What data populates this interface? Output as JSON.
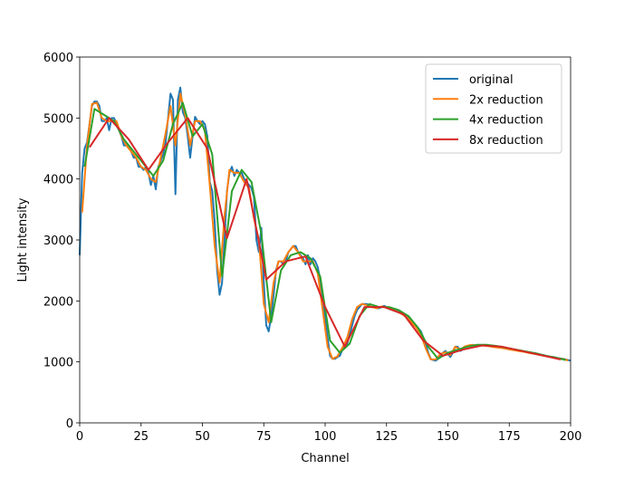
{
  "chart_data": {
    "type": "line",
    "xlabel": "Channel",
    "ylabel": "Light intensity",
    "xlim": [
      0,
      200
    ],
    "ylim": [
      0,
      6000
    ],
    "xticks": [
      0,
      25,
      50,
      75,
      100,
      125,
      150,
      175,
      200
    ],
    "yticks": [
      0,
      1000,
      2000,
      3000,
      4000,
      5000,
      6000
    ],
    "legend": "upper right",
    "grid": false,
    "series": [
      {
        "name": "original",
        "color": "#1f77b4",
        "x": [
          0,
          1,
          2,
          3,
          4,
          5,
          6,
          7,
          8,
          9,
          10,
          11,
          12,
          13,
          14,
          15,
          16,
          17,
          18,
          19,
          20,
          21,
          22,
          23,
          24,
          25,
          26,
          27,
          28,
          29,
          30,
          31,
          32,
          33,
          34,
          35,
          36,
          37,
          38,
          39,
          40,
          41,
          42,
          43,
          44,
          45,
          46,
          47,
          48,
          49,
          50,
          51,
          52,
          53,
          54,
          55,
          56,
          57,
          58,
          59,
          60,
          61,
          62,
          63,
          64,
          65,
          66,
          67,
          68,
          69,
          70,
          71,
          72,
          73,
          74,
          75,
          76,
          77,
          78,
          79,
          80,
          81,
          82,
          83,
          84,
          85,
          86,
          87,
          88,
          89,
          90,
          91,
          92,
          93,
          94,
          95,
          96,
          97,
          98,
          99,
          100,
          101,
          102,
          103,
          104,
          105,
          106,
          107,
          108,
          109,
          110,
          111,
          112,
          113,
          114,
          115,
          116,
          117,
          118,
          119,
          120,
          121,
          122,
          123,
          124,
          125,
          126,
          127,
          128,
          129,
          130,
          131,
          132,
          133,
          134,
          135,
          136,
          137,
          138,
          139,
          140,
          141,
          142,
          143,
          144,
          145,
          146,
          147,
          148,
          149,
          150,
          151,
          152,
          153,
          154,
          155,
          156,
          157,
          158,
          159,
          160,
          161,
          162,
          163,
          164,
          165,
          166,
          167,
          168,
          169,
          170,
          171,
          172,
          173,
          174,
          175,
          176,
          177,
          178,
          179,
          180,
          181,
          182,
          183,
          184,
          185,
          186,
          187,
          188,
          189,
          190,
          191,
          192,
          193,
          194,
          195,
          196,
          197,
          198,
          199,
          200
        ],
        "values": [
          2750,
          4100,
          4500,
          4600,
          4900,
          5200,
          5270,
          5270,
          5200,
          4950,
          4950,
          5000,
          4800,
          5000,
          5000,
          4900,
          4800,
          4700,
          4550,
          4550,
          4550,
          4450,
          4350,
          4350,
          4200,
          4200,
          4150,
          4200,
          4100,
          3900,
          4050,
          3830,
          4200,
          4300,
          4400,
          4600,
          5000,
          5400,
          5300,
          3750,
          5300,
          5500,
          5100,
          5000,
          4700,
          4350,
          4700,
          5020,
          4950,
          4900,
          4950,
          4900,
          4700,
          3950,
          3800,
          3300,
          2500,
          2100,
          2300,
          3000,
          3800,
          4100,
          4200,
          4050,
          4150,
          4100,
          4100,
          4000,
          3950,
          3900,
          3850,
          3700,
          3000,
          2800,
          3200,
          2300,
          1600,
          1500,
          1750,
          2100,
          2500,
          2650,
          2650,
          2600,
          2650,
          2800,
          2850,
          2900,
          2900,
          2800,
          2750,
          2700,
          2600,
          2750,
          2600,
          2700,
          2650,
          2550,
          2350,
          2000,
          1700,
          1400,
          1100,
          1050,
          1050,
          1080,
          1100,
          1200,
          1250,
          1300,
          1450,
          1600,
          1750,
          1850,
          1900,
          1950,
          1950,
          1950,
          1920,
          1900,
          1900,
          1880,
          1880,
          1900,
          1920,
          1900,
          1880,
          1870,
          1850,
          1840,
          1820,
          1800,
          1780,
          1750,
          1720,
          1680,
          1640,
          1600,
          1550,
          1500,
          1400,
          1300,
          1150,
          1050,
          1030,
          1020,
          1050,
          1100,
          1150,
          1180,
          1130,
          1080,
          1150,
          1250,
          1250,
          1180,
          1200,
          1250,
          1260,
          1270,
          1280,
          1270,
          1280,
          1275,
          1270,
          1270,
          1265,
          1260,
          1250,
          1245,
          1240,
          1235,
          1230,
          1225,
          1220,
          1210,
          1200,
          1195,
          1190,
          1180,
          1175,
          1170,
          1160,
          1150,
          1145,
          1140,
          1130,
          1120,
          1115,
          1110,
          1100,
          1090,
          1085,
          1080,
          1070,
          1060,
          1055,
          1050,
          1040,
          1030,
          1020
        ]
      },
      {
        "name": "2x reduction",
        "color": "#ff7f0e",
        "x": [
          1,
          3,
          5,
          7,
          9,
          11,
          13,
          15,
          17,
          19,
          21,
          23,
          25,
          27,
          29,
          31,
          33,
          35,
          37,
          39,
          41,
          43,
          45,
          47,
          49,
          51,
          53,
          55,
          57,
          59,
          61,
          63,
          65,
          67,
          69,
          71,
          73,
          75,
          77,
          79,
          81,
          83,
          85,
          87,
          89,
          91,
          93,
          95,
          97,
          99,
          101,
          103,
          105,
          107,
          109,
          111,
          113,
          115,
          117,
          119,
          121,
          123,
          125,
          127,
          129,
          131,
          133,
          135,
          137,
          139,
          141,
          143,
          145,
          147,
          149,
          151,
          153,
          155,
          157,
          159,
          161,
          163,
          165,
          167,
          169,
          171,
          173,
          175,
          177,
          179,
          181,
          183,
          185,
          187,
          189,
          191,
          193,
          195,
          197,
          199
        ],
        "values": [
          3450,
          4550,
          5230,
          5250,
          5000,
          4950,
          4950,
          4950,
          4700,
          4550,
          4450,
          4350,
          4200,
          4150,
          4000,
          3950,
          4350,
          4750,
          5200,
          4550,
          5400,
          5050,
          4550,
          4950,
          4950,
          4800,
          3900,
          2900,
          2300,
          3400,
          4150,
          4100,
          4100,
          3950,
          3850,
          3350,
          3000,
          1950,
          1650,
          2300,
          2650,
          2650,
          2800,
          2900,
          2800,
          2650,
          2650,
          2650,
          2450,
          1850,
          1250,
          1050,
          1090,
          1230,
          1400,
          1700,
          1900,
          1950,
          1930,
          1900,
          1880,
          1910,
          1890,
          1860,
          1830,
          1790,
          1740,
          1660,
          1570,
          1450,
          1220,
          1040,
          1040,
          1130,
          1160,
          1110,
          1250,
          1200,
          1255,
          1275,
          1275,
          1272,
          1267,
          1255,
          1242,
          1232,
          1222,
          1205,
          1192,
          1177,
          1165,
          1147,
          1135,
          1117,
          1105,
          1087,
          1075,
          1057,
          1045,
          1025
        ]
      },
      {
        "name": "4x reduction",
        "color": "#2ca02c",
        "x": [
          2,
          6,
          10,
          14,
          18,
          22,
          26,
          30,
          34,
          38,
          42,
          46,
          50,
          54,
          58,
          62,
          66,
          70,
          74,
          78,
          82,
          86,
          90,
          94,
          98,
          102,
          106,
          110,
          114,
          118,
          122,
          126,
          130,
          134,
          138,
          142,
          146,
          150,
          154,
          158,
          162,
          166,
          170,
          174,
          178,
          182,
          186,
          190,
          194,
          198
        ],
        "values": [
          4200,
          5150,
          5050,
          4950,
          4650,
          4450,
          4250,
          4050,
          4300,
          4900,
          5250,
          4700,
          4900,
          4400,
          2400,
          3800,
          4150,
          3950,
          3100,
          1650,
          2500,
          2750,
          2800,
          2700,
          2400,
          1350,
          1150,
          1300,
          1750,
          1950,
          1900,
          1900,
          1850,
          1750,
          1550,
          1250,
          1050,
          1150,
          1200,
          1250,
          1280,
          1280,
          1260,
          1230,
          1200,
          1170,
          1140,
          1100,
          1070,
          1030
        ]
      },
      {
        "name": "8x reduction",
        "color": "#d62728",
        "x": [
          4,
          12,
          20,
          28,
          36,
          44,
          52,
          60,
          68,
          76,
          84,
          92,
          100,
          108,
          116,
          124,
          132,
          140,
          148,
          156,
          164,
          172,
          180,
          188,
          196
        ],
        "values": [
          4520,
          5000,
          4650,
          4150,
          4600,
          5000,
          4500,
          3030,
          4000,
          2350,
          2650,
          2730,
          1900,
          1250,
          1900,
          1900,
          1780,
          1350,
          1100,
          1200,
          1270,
          1250,
          1180,
          1110,
          1040
        ]
      }
    ]
  }
}
